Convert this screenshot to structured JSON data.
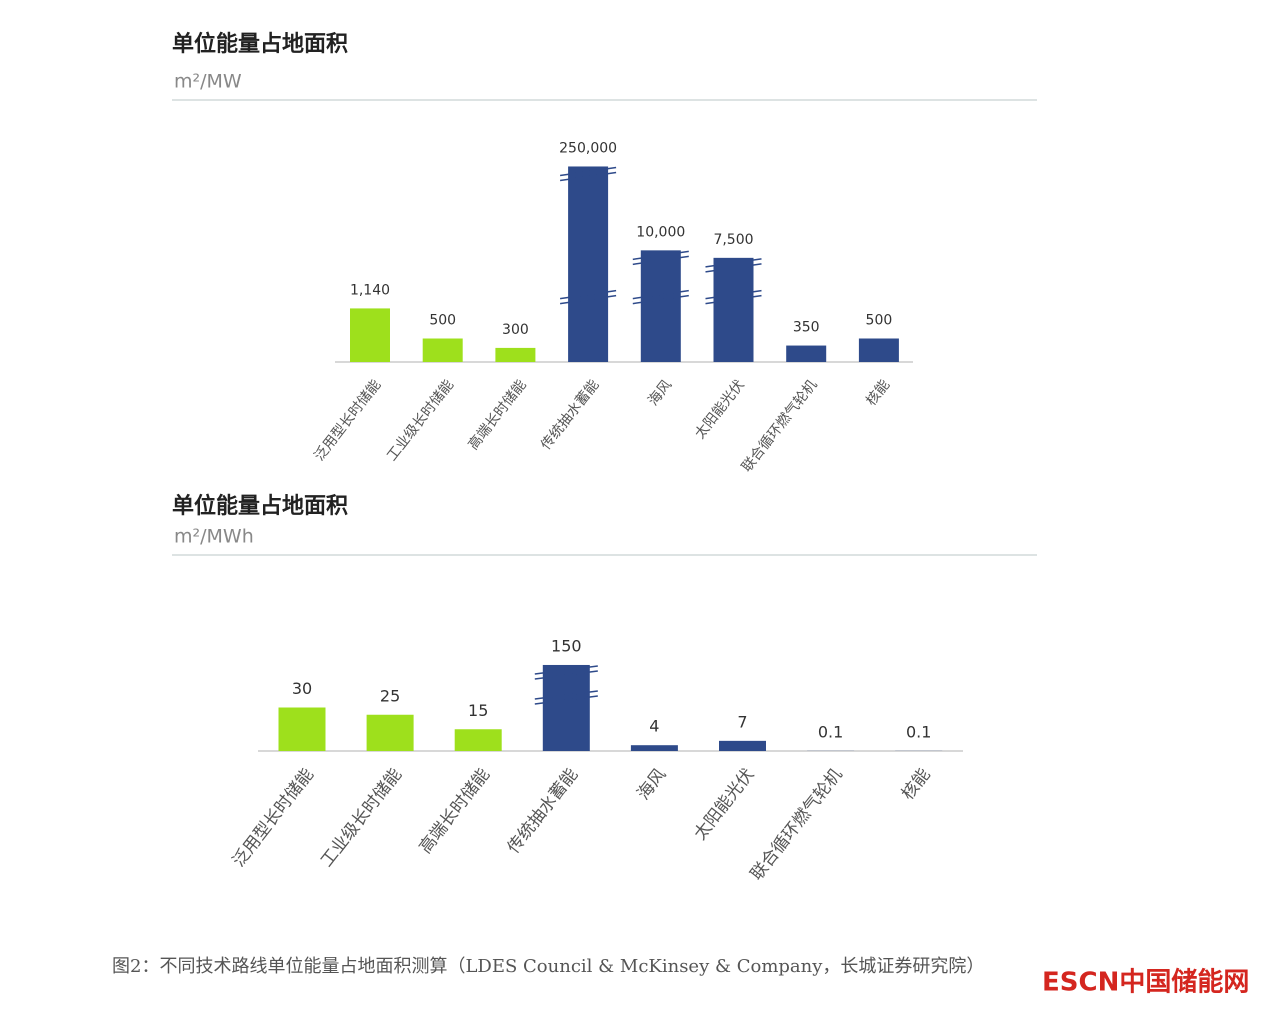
{
  "chart_data": [
    {
      "type": "bar",
      "title": "单位能量占地面积",
      "unit": "m²/MW",
      "categories": [
        "泛用型长时储能",
        "工业级长时储能",
        "高端长时储能",
        "传统抽水蓄能",
        "海风",
        "太阳能光伏",
        "联合循环燃气轮机",
        "核能"
      ],
      "values": [
        1140,
        500,
        300,
        250000,
        10000,
        7500,
        350,
        500
      ],
      "value_labels": [
        "1,140",
        "500",
        "300",
        "250,000",
        "10,000",
        "7,500",
        "350",
        "500"
      ],
      "colors": [
        "#9ee01c",
        "#9ee01c",
        "#9ee01c",
        "#2e4a8a",
        "#2e4a8a",
        "#2e4a8a",
        "#2e4a8a",
        "#2e4a8a"
      ]
    },
    {
      "type": "bar",
      "title": "单位能量占地面积",
      "unit": "m²/MWh",
      "categories": [
        "泛用型长时储能",
        "工业级长时储能",
        "高端长时储能",
        "传统抽水蓄能",
        "海风",
        "太阳能光伏",
        "联合循环燃气轮机",
        "核能"
      ],
      "values": [
        30,
        25,
        15,
        150,
        4,
        7,
        0.1,
        0.1
      ],
      "value_labels": [
        "30",
        "25",
        "15",
        "150",
        "4",
        "7",
        "0.1",
        "0.1"
      ],
      "colors": [
        "#9ee01c",
        "#9ee01c",
        "#9ee01c",
        "#2e4a8a",
        "#2e4a8a",
        "#2e4a8a",
        "#2e4a8a",
        "#2e4a8a"
      ]
    }
  ],
  "caption": "图2：不同技术路线单位能量占地面积测算（LDES Council & McKinsey & Company，长城证券研究院）",
  "watermark": "ESCN中国储能网"
}
